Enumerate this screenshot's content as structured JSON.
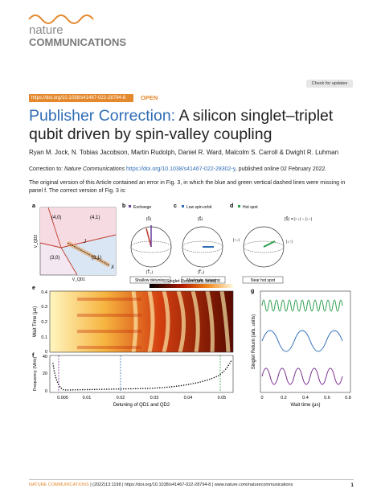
{
  "header": {
    "logo_top": "nature",
    "logo_bottom": "COMMUNICATIONS",
    "check_updates": "Check for updates",
    "doi": "https://doi.org/10.1038/s41467-022-28794-8",
    "open": "OPEN"
  },
  "title": {
    "prefix": "Publisher Correction:",
    "text": "A silicon singlet–triplet qubit driven by spin-valley coupling"
  },
  "authors": "Ryan M. Jock, N. Tobias Jacobson, Martin Rudolph, Daniel R. Ward, Malcolm S. Carroll & Dwight R. Luhman",
  "correction": {
    "lead": "Correction to:",
    "journal": "Nature Communications",
    "link": "https://doi.org/10.1038/s41467-022-28302-y",
    "tail": ", published online 02 February 2022."
  },
  "body": "The original version of this Article contained an error in Fig. 3, in which the blue and green vertical dashed lines were missing in panel f. The correct version of Fig. 3 is:",
  "figure": {
    "panels": {
      "a": {
        "label": "a",
        "regions": [
          "(4,0)",
          "(4,1)",
          "(3,0)",
          "(3,1)"
        ],
        "y_axis": "V_QD2",
        "x_axis": "V_QD1",
        "marks": [
          "J",
          "X"
        ]
      },
      "b": {
        "label": "b",
        "tag": "Exchange",
        "top": "|S̃⟩",
        "bottom": "|T̃₀⟩",
        "caption": "Shallow detuning"
      },
      "c": {
        "label": "c",
        "tag": "Low spin-orbit",
        "top": "|S̃⟩",
        "bottom": "|T̃₀⟩",
        "caption": "Moderate detuning"
      },
      "d": {
        "label": "d",
        "tag": "Hot spot",
        "top": "|S̃⟩ = |↑↓⟩ − |↓↑⟩",
        "middle": "|↑↓⟩",
        "right": "|↓↑⟩",
        "caption": "Near hot spot"
      },
      "e": {
        "label": "e",
        "colorbar": "Singlet Return (arb. units)",
        "y_axis": "Wait Time (μs)",
        "yticks": [
          "0.4",
          "0.3",
          "0.2",
          "0.1",
          "0"
        ]
      },
      "f": {
        "label": "f",
        "y_axis": "Frequency (MHz)",
        "yticks": [
          "40",
          "20",
          "0"
        ],
        "xticks": [
          "0.005",
          "0.01",
          "0.02",
          "0.03",
          "0.04",
          "0.05"
        ],
        "x_axis": "Detuning of QD1 and QD2"
      },
      "g": {
        "label": "g",
        "y_axis": "Singlet Return (arb. units)",
        "xticks": [
          "0",
          "0.2",
          "0.4",
          "0.6",
          "0.8"
        ],
        "x_axis": "Wait time (μs)"
      }
    }
  },
  "footer": {
    "journal": "NATURE COMMUNICATIONS",
    "citation": "| (2022)13:1198 | https://doi.org/10.1038/s41467-022-28794-8 | www.nature.com/naturecommunications",
    "page": "1"
  }
}
